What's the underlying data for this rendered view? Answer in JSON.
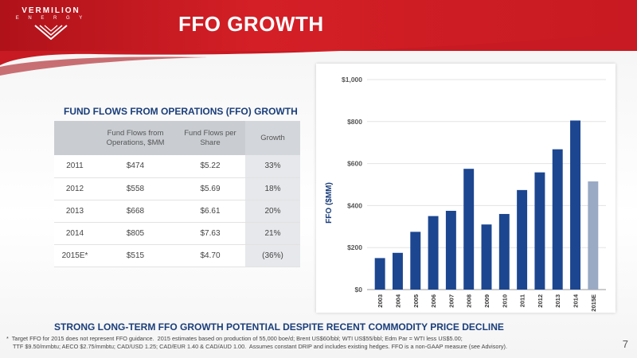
{
  "brand": {
    "name": "VERMILION",
    "sub": "E N E R G Y",
    "colors": {
      "red": "#c81a22",
      "navy": "#1a3e7a",
      "bar": "#1c4690",
      "estimate_bar": "#9aa9c4"
    }
  },
  "header": {
    "title": "FFO GROWTH"
  },
  "table": {
    "title": "FUND FLOWS FROM OPERATIONS (FFO) GROWTH",
    "columns": [
      "",
      "Fund Flows from Operations, $MM",
      "Fund Flows per Share",
      "Growth"
    ],
    "rows": [
      {
        "year": "2011",
        "ffo": "$474",
        "per_share": "$5.22",
        "growth": "33%"
      },
      {
        "year": "2012",
        "ffo": "$558",
        "per_share": "$5.69",
        "growth": "18%"
      },
      {
        "year": "2013",
        "ffo": "$668",
        "per_share": "$6.61",
        "growth": "20%"
      },
      {
        "year": "2014",
        "ffo": "$805",
        "per_share": "$7.63",
        "growth": "21%"
      },
      {
        "year": "2015E*",
        "ffo": "$515",
        "per_share": "$4.70",
        "growth": "(36%)"
      }
    ]
  },
  "chart_data": {
    "type": "bar",
    "categories": [
      "2003",
      "2004",
      "2005",
      "2006",
      "2007",
      "2008",
      "2009",
      "2010",
      "2011",
      "2012",
      "2013",
      "2014",
      "2015E"
    ],
    "values": [
      150,
      175,
      275,
      350,
      375,
      575,
      310,
      360,
      474,
      558,
      668,
      805,
      515
    ],
    "estimate_index": 12,
    "ylabel": "FFO ($MM)",
    "xlabel": "",
    "ylim": [
      0,
      1000
    ],
    "yticks": [
      0,
      200,
      400,
      600,
      800,
      1000
    ],
    "ytick_labels": [
      "$0",
      "$200",
      "$400",
      "$600",
      "$800",
      "$1,000"
    ],
    "grid": true
  },
  "footer": {
    "headline": "STRONG LONG-TERM FFO GROWTH POTENTIAL DESPITE RECENT COMMODITY PRICE DECLINE",
    "note_line1": "*  Target FFO for 2015 does not represent FFO guidance.  2015 estimates based on production of 55,000 boe/d; Brent US$60/bbl; WTI US$55/bbl; Edm Par = WTI less US$5.00;",
    "note_line2": "    TTF $9.50/mmbtu; AECO $2.75/mmbtu; CAD/USD 1.25; CAD/EUR 1.40 & CAD/AUD 1.00.  Assumes constant DRIP and includes existing hedges. FFO is a non-GAAP measure (see Advisory).",
    "page_number": "7"
  }
}
